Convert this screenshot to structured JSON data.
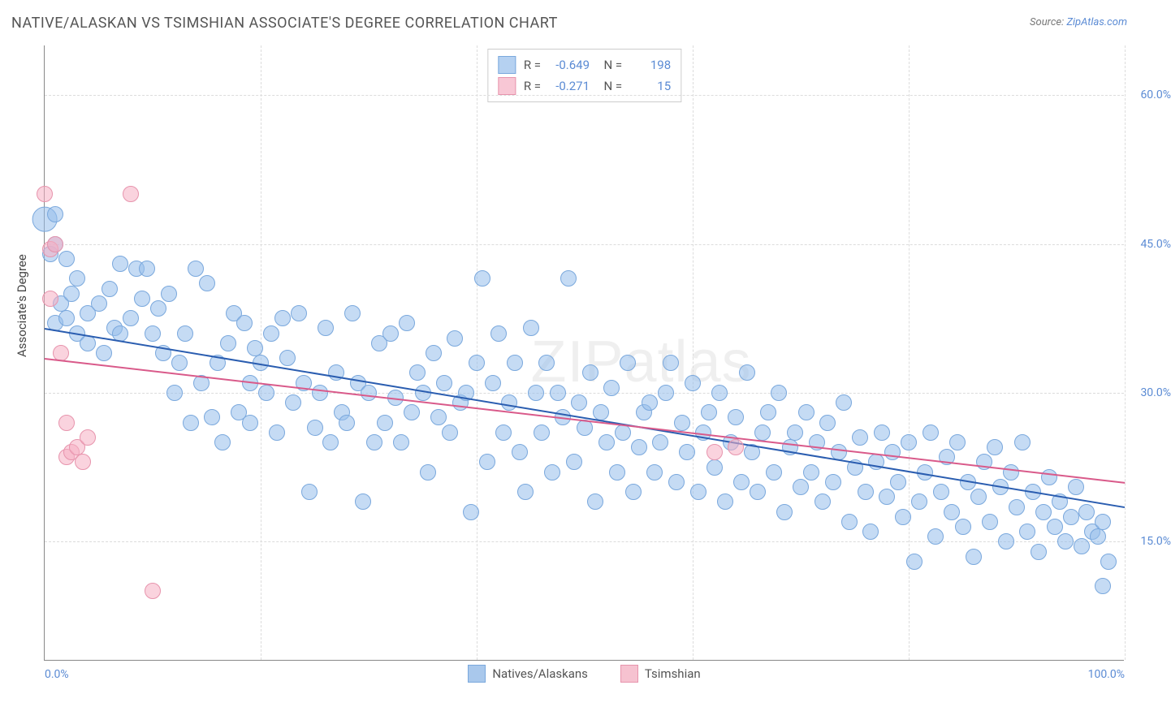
{
  "title": "NATIVE/ALASKAN VS TSIMSHIAN ASSOCIATE'S DEGREE CORRELATION CHART",
  "source": {
    "label": "Source: ",
    "link": "ZipAtlas.com"
  },
  "ylabel": "Associate's Degree",
  "watermark": "ZIPatlas",
  "chart": {
    "type": "scatter",
    "xlim": [
      0,
      100
    ],
    "ylim": [
      3,
      65
    ],
    "y_gridlines": [
      15,
      30,
      45,
      60
    ],
    "y_tick_labels": [
      "15.0%",
      "30.0%",
      "45.0%",
      "60.0%"
    ],
    "x_gridlines": [
      0,
      20,
      40,
      60,
      80,
      100
    ],
    "x_tick_labels_show": [
      0,
      100
    ],
    "x_tick_labels": [
      "0.0%",
      "100.0%"
    ],
    "grid_color": "#dcdcdc",
    "axis_color": "#888888",
    "background": "#ffffff",
    "point_radius": 9,
    "series": [
      {
        "name": "Natives/Alaskans",
        "color_fill": "rgba(150,190,235,0.55)",
        "color_stroke": "#7aa8dd",
        "trend_color": "#2a5db0",
        "trend": {
          "x1": 0,
          "y1": 36.5,
          "x2": 100,
          "y2": 18.5
        },
        "R": "-0.649",
        "N": "198",
        "points": [
          [
            0,
            47.5
          ],
          [
            0.5,
            44
          ],
          [
            1,
            45
          ],
          [
            1,
            37
          ],
          [
            1.5,
            39
          ],
          [
            2,
            43.5
          ],
          [
            2,
            37.5
          ],
          [
            2.5,
            40
          ],
          [
            3,
            36
          ],
          [
            1,
            48
          ],
          [
            3,
            41.5
          ],
          [
            4,
            35
          ],
          [
            4,
            38
          ],
          [
            5,
            39
          ],
          [
            5.5,
            34
          ],
          [
            6,
            40.5
          ],
          [
            6.5,
            36.5
          ],
          [
            7,
            43
          ],
          [
            7,
            36
          ],
          [
            8,
            37.5
          ],
          [
            8.5,
            42.5
          ],
          [
            9,
            39.5
          ],
          [
            9.5,
            42.5
          ],
          [
            10,
            36
          ],
          [
            10.5,
            38.5
          ],
          [
            11,
            34
          ],
          [
            11.5,
            40
          ],
          [
            12,
            30
          ],
          [
            12.5,
            33
          ],
          [
            13,
            36
          ],
          [
            13.5,
            27
          ],
          [
            14,
            42.5
          ],
          [
            14.5,
            31
          ],
          [
            15,
            41
          ],
          [
            15.5,
            27.5
          ],
          [
            16,
            33
          ],
          [
            16.5,
            25
          ],
          [
            17,
            35
          ],
          [
            17.5,
            38
          ],
          [
            18,
            28
          ],
          [
            18.5,
            37
          ],
          [
            19,
            31
          ],
          [
            19,
            27
          ],
          [
            19.5,
            34.5
          ],
          [
            20,
            33
          ],
          [
            20.5,
            30
          ],
          [
            21,
            36
          ],
          [
            21.5,
            26
          ],
          [
            22,
            37.5
          ],
          [
            22.5,
            33.5
          ],
          [
            23,
            29
          ],
          [
            23.5,
            38
          ],
          [
            24,
            31
          ],
          [
            24.5,
            20
          ],
          [
            25,
            26.5
          ],
          [
            25.5,
            30
          ],
          [
            26,
            36.5
          ],
          [
            26.5,
            25
          ],
          [
            27,
            32
          ],
          [
            27.5,
            28
          ],
          [
            28,
            27
          ],
          [
            28.5,
            38
          ],
          [
            29,
            31
          ],
          [
            29.5,
            19
          ],
          [
            30,
            30
          ],
          [
            30.5,
            25
          ],
          [
            31,
            35
          ],
          [
            31.5,
            27
          ],
          [
            32,
            36
          ],
          [
            32.5,
            29.5
          ],
          [
            33,
            25
          ],
          [
            33.5,
            37
          ],
          [
            34,
            28
          ],
          [
            34.5,
            32
          ],
          [
            35,
            30
          ],
          [
            35.5,
            22
          ],
          [
            36,
            34
          ],
          [
            36.5,
            27.5
          ],
          [
            37,
            31
          ],
          [
            37.5,
            26
          ],
          [
            38,
            35.5
          ],
          [
            38.5,
            29
          ],
          [
            39,
            30
          ],
          [
            39.5,
            18
          ],
          [
            40,
            33
          ],
          [
            40.5,
            41.5
          ],
          [
            41,
            23
          ],
          [
            41.5,
            31
          ],
          [
            42,
            36
          ],
          [
            42.5,
            26
          ],
          [
            43,
            29
          ],
          [
            43.5,
            33
          ],
          [
            44,
            24
          ],
          [
            44.5,
            20
          ],
          [
            45,
            36.5
          ],
          [
            45.5,
            30
          ],
          [
            46,
            26
          ],
          [
            46.5,
            33
          ],
          [
            47,
            22
          ],
          [
            47.5,
            30
          ],
          [
            48,
            27.5
          ],
          [
            48.5,
            41.5
          ],
          [
            49,
            23
          ],
          [
            49.5,
            29
          ],
          [
            50,
            26.5
          ],
          [
            50.5,
            32
          ],
          [
            51,
            19
          ],
          [
            51.5,
            28
          ],
          [
            52,
            25
          ],
          [
            52.5,
            30.5
          ],
          [
            53,
            22
          ],
          [
            53.5,
            26
          ],
          [
            54,
            33
          ],
          [
            54.5,
            20
          ],
          [
            55,
            24.5
          ],
          [
            55.5,
            28
          ],
          [
            56,
            29
          ],
          [
            56.5,
            22
          ],
          [
            57,
            25
          ],
          [
            57.5,
            30
          ],
          [
            58,
            33
          ],
          [
            58.5,
            21
          ],
          [
            59,
            27
          ],
          [
            59.5,
            24
          ],
          [
            60,
            31
          ],
          [
            60.5,
            20
          ],
          [
            61,
            26
          ],
          [
            61.5,
            28
          ],
          [
            62,
            22.5
          ],
          [
            62.5,
            30
          ],
          [
            63,
            19
          ],
          [
            63.5,
            25
          ],
          [
            64,
            27.5
          ],
          [
            64.5,
            21
          ],
          [
            65,
            32
          ],
          [
            65.5,
            24
          ],
          [
            66,
            20
          ],
          [
            66.5,
            26
          ],
          [
            67,
            28
          ],
          [
            67.5,
            22
          ],
          [
            68,
            30
          ],
          [
            68.5,
            18
          ],
          [
            69,
            24.5
          ],
          [
            69.5,
            26
          ],
          [
            70,
            20.5
          ],
          [
            70.5,
            28
          ],
          [
            71,
            22
          ],
          [
            71.5,
            25
          ],
          [
            72,
            19
          ],
          [
            72.5,
            27
          ],
          [
            73,
            21
          ],
          [
            73.5,
            24
          ],
          [
            74,
            29
          ],
          [
            74.5,
            17
          ],
          [
            75,
            22.5
          ],
          [
            75.5,
            25.5
          ],
          [
            76,
            20
          ],
          [
            76.5,
            16
          ],
          [
            77,
            23
          ],
          [
            77.5,
            26
          ],
          [
            78,
            19.5
          ],
          [
            78.5,
            24
          ],
          [
            79,
            21
          ],
          [
            79.5,
            17.5
          ],
          [
            80,
            25
          ],
          [
            80.5,
            13
          ],
          [
            81,
            19
          ],
          [
            81.5,
            22
          ],
          [
            82,
            26
          ],
          [
            82.5,
            15.5
          ],
          [
            83,
            20
          ],
          [
            83.5,
            23.5
          ],
          [
            84,
            18
          ],
          [
            84.5,
            25
          ],
          [
            85,
            16.5
          ],
          [
            85.5,
            21
          ],
          [
            86,
            13.5
          ],
          [
            86.5,
            19.5
          ],
          [
            87,
            23
          ],
          [
            87.5,
            17
          ],
          [
            88,
            24.5
          ],
          [
            88.5,
            20.5
          ],
          [
            89,
            15
          ],
          [
            89.5,
            22
          ],
          [
            90,
            18.5
          ],
          [
            90.5,
            25
          ],
          [
            91,
            16
          ],
          [
            91.5,
            20
          ],
          [
            92,
            14
          ],
          [
            92.5,
            18
          ],
          [
            93,
            21.5
          ],
          [
            93.5,
            16.5
          ],
          [
            94,
            19
          ],
          [
            94.5,
            15
          ],
          [
            95,
            17.5
          ],
          [
            95.5,
            20.5
          ],
          [
            96,
            14.5
          ],
          [
            96.5,
            18
          ],
          [
            97,
            16
          ],
          [
            97.5,
            15.5
          ],
          [
            98,
            17
          ],
          [
            98,
            10.5
          ],
          [
            98.5,
            13
          ]
        ]
      },
      {
        "name": "Tsimshian",
        "color_fill": "rgba(245,175,195,0.55)",
        "color_stroke": "#e794ad",
        "trend_color": "#d95a8a",
        "trend": {
          "x1": 0,
          "y1": 33.5,
          "x2": 100,
          "y2": 21
        },
        "R": "-0.271",
        "N": "15",
        "points": [
          [
            0,
            50
          ],
          [
            0.5,
            44.5
          ],
          [
            0.5,
            39.5
          ],
          [
            1,
            45
          ],
          [
            1.5,
            34
          ],
          [
            2,
            27
          ],
          [
            2,
            23.5
          ],
          [
            2.5,
            24
          ],
          [
            3,
            24.5
          ],
          [
            3.5,
            23
          ],
          [
            4,
            25.5
          ],
          [
            8,
            50
          ],
          [
            10,
            10
          ],
          [
            62,
            24
          ],
          [
            64,
            24.5
          ]
        ]
      }
    ]
  },
  "bottom_legend": [
    {
      "label": "Natives/Alaskans",
      "fill": "#a9c8ec",
      "stroke": "#7aa8dd"
    },
    {
      "label": "Tsimshian",
      "fill": "#f6c2d0",
      "stroke": "#e794ad"
    }
  ]
}
